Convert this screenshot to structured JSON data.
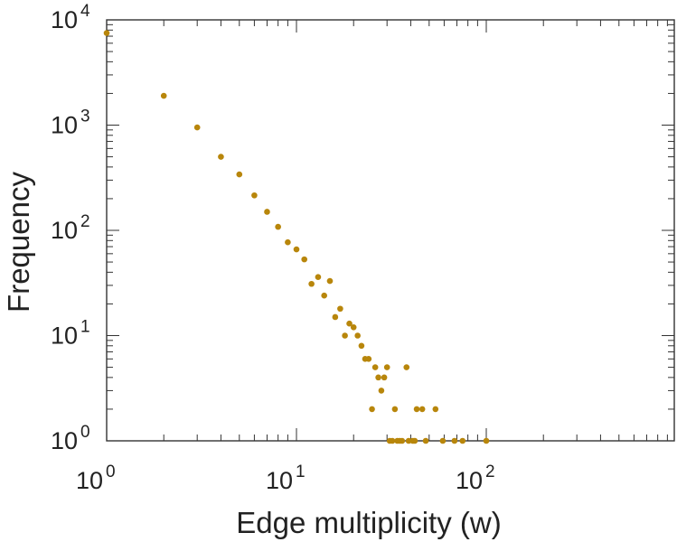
{
  "chart_data": {
    "type": "scatter",
    "xlabel": "Edge multiplicity (w)",
    "ylabel": "Frequency",
    "xscale": "log",
    "yscale": "log",
    "xlim": [
      1,
      1000
    ],
    "ylim": [
      1,
      10000
    ],
    "grid": false,
    "marker_color": "#b8860b",
    "x_ticks": [
      {
        "base": "10",
        "exp": "0"
      },
      {
        "base": "10",
        "exp": "1"
      },
      {
        "base": "10",
        "exp": "2"
      }
    ],
    "y_ticks": [
      {
        "base": "10",
        "exp": "0"
      },
      {
        "base": "10",
        "exp": "1"
      },
      {
        "base": "10",
        "exp": "2"
      },
      {
        "base": "10",
        "exp": "3"
      },
      {
        "base": "10",
        "exp": "4"
      }
    ],
    "points": [
      [
        1,
        7500
      ],
      [
        2,
        1900
      ],
      [
        3,
        950
      ],
      [
        4,
        500
      ],
      [
        5,
        340
      ],
      [
        6,
        215
      ],
      [
        7,
        150
      ],
      [
        8,
        108
      ],
      [
        9,
        77
      ],
      [
        10,
        66
      ],
      [
        11,
        53
      ],
      [
        12,
        31
      ],
      [
        13,
        36
      ],
      [
        14,
        24
      ],
      [
        15,
        33
      ],
      [
        16,
        15
      ],
      [
        17,
        18
      ],
      [
        18,
        10
      ],
      [
        19,
        13
      ],
      [
        20,
        12
      ],
      [
        21,
        10
      ],
      [
        22,
        8
      ],
      [
        23,
        6
      ],
      [
        24,
        6
      ],
      [
        25,
        2
      ],
      [
        26,
        5
      ],
      [
        27,
        4
      ],
      [
        28,
        3
      ],
      [
        29,
        4
      ],
      [
        30,
        5
      ],
      [
        31,
        1
      ],
      [
        32,
        1
      ],
      [
        33,
        2
      ],
      [
        34,
        1
      ],
      [
        35,
        1
      ],
      [
        36,
        1
      ],
      [
        38,
        5
      ],
      [
        39,
        1
      ],
      [
        41,
        1
      ],
      [
        42,
        1
      ],
      [
        43,
        2
      ],
      [
        46,
        2
      ],
      [
        48,
        1
      ],
      [
        54,
        2
      ],
      [
        59,
        1
      ],
      [
        68,
        1
      ],
      [
        75,
        1
      ],
      [
        100,
        1
      ]
    ]
  }
}
